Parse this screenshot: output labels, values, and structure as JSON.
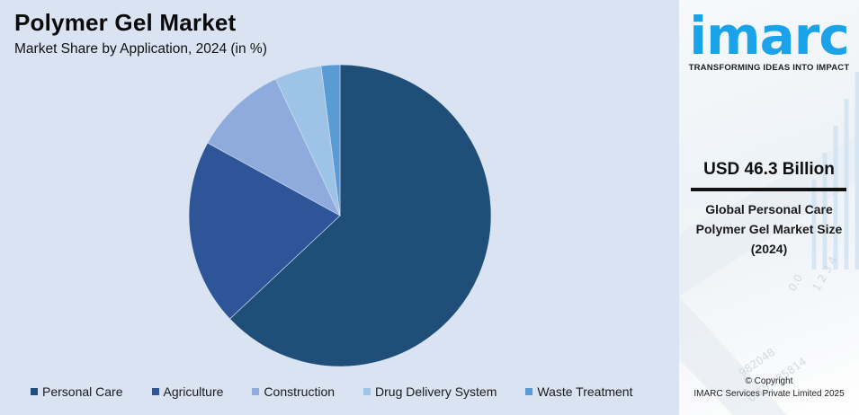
{
  "header": {
    "title": "Polymer Gel Market",
    "subtitle": "Market Share by Application, 2024 (in %)"
  },
  "chart_data": {
    "type": "pie",
    "title": "Polymer Gel Market",
    "subtitle": "Market Share by Application, 2024 (in %)",
    "categories": [
      "Personal Care",
      "Agriculture",
      "Construction",
      "Drug Delivery System",
      "Waste Treatment"
    ],
    "values": [
      63,
      20,
      10,
      5,
      2
    ],
    "colors": [
      "#1f4e79",
      "#2e5597",
      "#8faadc",
      "#9dc3e6",
      "#5b9bd5"
    ],
    "start_angle": "12 o'clock, clockwise",
    "legend_position": "bottom",
    "data_labels": false
  },
  "legend": {
    "items": [
      {
        "label": "Personal Care",
        "color": "#1f4e79"
      },
      {
        "label": "Agriculture",
        "color": "#2e5597"
      },
      {
        "label": "Construction",
        "color": "#8faadc"
      },
      {
        "label": "Drug Delivery System",
        "color": "#9dc3e6"
      },
      {
        "label": "Waste Treatment",
        "color": "#5b9bd5"
      }
    ]
  },
  "sidebar": {
    "logo_text": "imarc",
    "logo_tagline": "TRANSFORMING IDEAS INTO IMPACT",
    "logo_color": "#1aa3e8",
    "metric_value": "USD 46.3 Billion",
    "metric_line1": "Global Personal Care",
    "metric_line2": "Polymer Gel Market Size",
    "metric_line3": "(2024)",
    "copyright_line1": "© Copyright",
    "copyright_line2": "IMARC Services Private Limited 2025"
  }
}
